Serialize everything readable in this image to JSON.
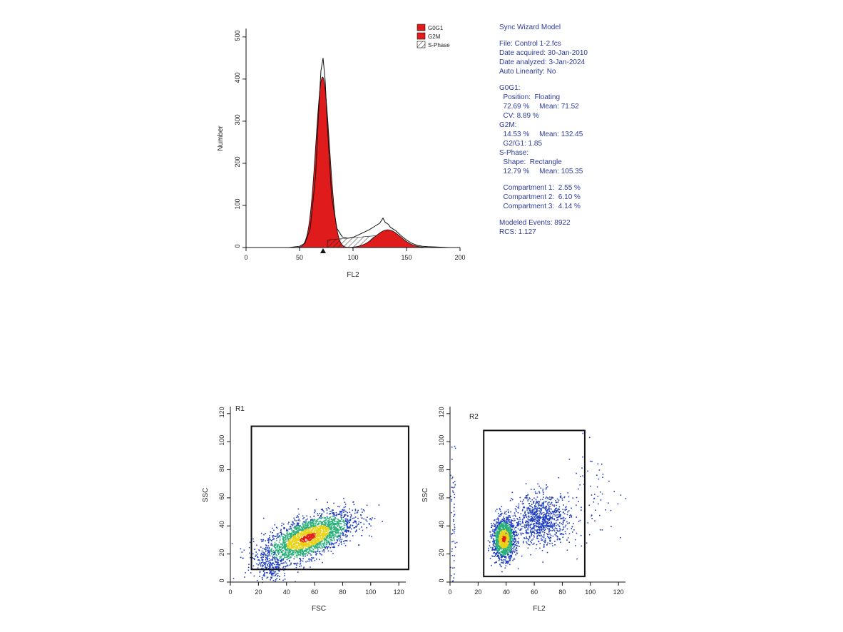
{
  "report": {
    "title": "Sync Wizard Model",
    "file": "File: Control 1-2.fcs",
    "date_acquired": "Date acquired: 30-Jan-2010",
    "date_analyzed": "Date analyzed: 3-Jan-2024",
    "auto_linearity": "Auto Linearity: No",
    "g0g1_header": "G0G1:",
    "g0g1_position": "  Position:  Floating",
    "g0g1_pct_mean": "  72.69 %     Mean: 71.52",
    "g0g1_cv": "  CV: 8.89 %",
    "g2m_header": "G2M:",
    "g2m_pct_mean": "  14.53 %     Mean: 132.45",
    "g2g1": "  G2/G1: 1.85",
    "sphase_header": "S-Phase:",
    "sphase_shape": "  Shape:  Rectangle",
    "sphase_pct_mean": "  12.79 %     Mean: 105.35",
    "compartment1": "  Compartment 1:  2.55 %",
    "compartment2": "  Compartment 2:  6.10 %",
    "compartment3": "  Compartment 3:  4.14 %",
    "modeled_events": "Modeled Events: 8922",
    "rcs": "RCS: 1.127"
  },
  "colors": {
    "g0g1": "#e01b1b",
    "g2m": "#e01b1b",
    "report_text": "#2b3a9a",
    "density_low": "#1f3fbf",
    "density_mid": "#2ab07a",
    "density_high": "#e8d21a",
    "density_peak": "#e0201a"
  },
  "chart_data": [
    {
      "type": "area",
      "xlabel": "FL2",
      "ylabel": "Number",
      "xlim": [
        0,
        200
      ],
      "ylim": [
        0,
        520
      ],
      "xticks": [
        "0",
        "50",
        "100",
        "150",
        "200"
      ],
      "yticks": [
        "0",
        "100",
        "200",
        "300",
        "400",
        "500"
      ],
      "legend": [
        "G0G1",
        "G2M",
        "S-Phase"
      ],
      "legend_position": "top-right",
      "marker_x": 72,
      "series": [
        {
          "name": "G0G1",
          "mean": 71.52,
          "cv_pct": 8.89,
          "peak": 405
        },
        {
          "name": "G2M",
          "mean": 132.45,
          "peak": 42
        },
        {
          "name": "S-Phase",
          "range": [
            76,
            130
          ],
          "level": 18
        }
      ],
      "histogram": {
        "x": [
          0,
          40,
          50,
          55,
          60,
          65,
          68,
          70,
          72,
          74,
          76,
          80,
          85,
          90,
          95,
          100,
          105,
          110,
          115,
          120,
          125,
          128,
          130,
          133,
          135,
          140,
          145,
          150,
          155,
          160,
          165,
          170,
          180,
          190
        ],
        "y": [
          0,
          0,
          3,
          10,
          45,
          170,
          330,
          420,
          450,
          395,
          290,
          120,
          45,
          25,
          22,
          24,
          30,
          36,
          42,
          50,
          58,
          70,
          60,
          55,
          48,
          40,
          28,
          18,
          10,
          5,
          3,
          2,
          1,
          0
        ]
      }
    },
    {
      "type": "scatter",
      "label": "R1",
      "xlabel": "FSC",
      "ylabel": "SSC",
      "xlim": [
        0,
        125
      ],
      "ylim": [
        0,
        125
      ],
      "xticks": [
        "0",
        "20",
        "40",
        "60",
        "80",
        "100",
        "120"
      ],
      "yticks": [
        "0",
        "20",
        "40",
        "60",
        "80",
        "100",
        "120"
      ],
      "gate": {
        "x": [
          15,
          127
        ],
        "y": [
          9,
          111
        ]
      },
      "clusters": [
        {
          "cx": 55,
          "cy": 32,
          "sx": 16,
          "sy": 7,
          "n": 2600,
          "slope": 0.35
        },
        {
          "cx": 28,
          "cy": 10,
          "sx": 4,
          "sy": 6,
          "n": 160,
          "slope": 0
        }
      ]
    },
    {
      "type": "scatter",
      "label": "R2",
      "xlabel": "FL2",
      "ylabel": "SSC",
      "xlim": [
        0,
        125
      ],
      "ylim": [
        0,
        125
      ],
      "xticks": [
        "0",
        "20",
        "40",
        "60",
        "80",
        "100",
        "120"
      ],
      "yticks": [
        "0",
        "20",
        "40",
        "60",
        "80",
        "100",
        "120"
      ],
      "gate": {
        "x": [
          24,
          96
        ],
        "y": [
          4,
          108
        ]
      },
      "clusters": [
        {
          "cx": 38,
          "cy": 31,
          "sx": 4,
          "sy": 7,
          "n": 1500,
          "slope": 0
        },
        {
          "cx": 65,
          "cy": 45,
          "sx": 10,
          "sy": 9,
          "n": 900,
          "slope": 0
        },
        {
          "cx": 2,
          "cy": 35,
          "sx": 1,
          "sy": 25,
          "n": 60,
          "slope": 0
        },
        {
          "cx": 100,
          "cy": 60,
          "sx": 12,
          "sy": 18,
          "n": 70,
          "slope": 0
        }
      ]
    }
  ]
}
